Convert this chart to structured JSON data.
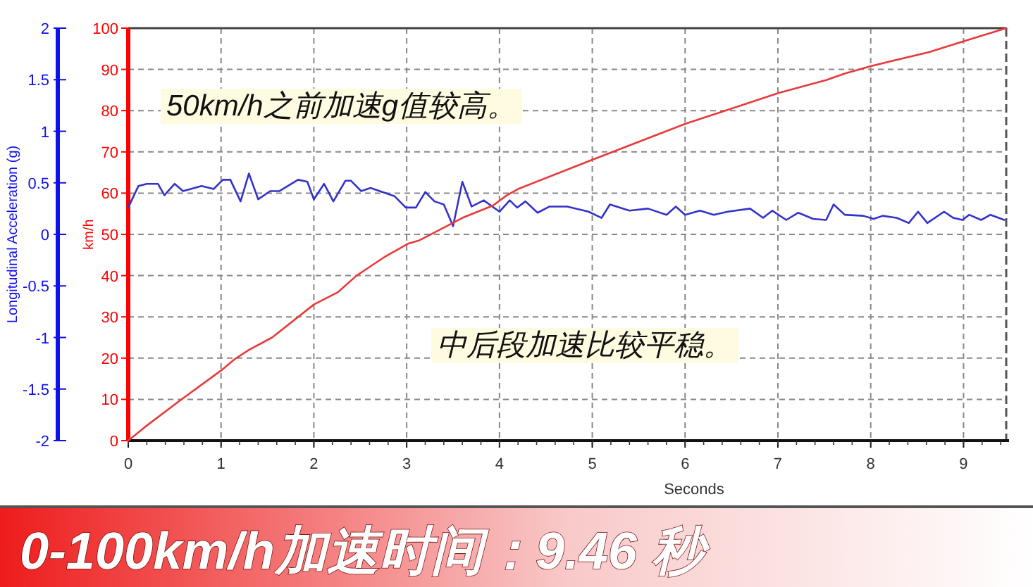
{
  "chart_data": {
    "type": "line",
    "title": "0-100km/h加速时间：9.46 秒",
    "xlabel": "Seconds",
    "ylabel": "Longitudinal Acceleration (g)",
    "y2label": "km/h",
    "xlim": [
      0,
      9.46
    ],
    "xticks": [
      0,
      1,
      2,
      3,
      4,
      5,
      6,
      7,
      8,
      9
    ],
    "ylim": [
      -2,
      2
    ],
    "yticks": [
      -2,
      -1.5,
      -1,
      {
        "value": -0.5,
        "label": "-0.5"
      },
      0,
      0.5,
      1,
      1.5,
      2
    ],
    "y2lim": [
      0,
      100
    ],
    "y2ticks": [
      0,
      10,
      20,
      30,
      40,
      50,
      60,
      70,
      80,
      90,
      100
    ],
    "grid": true,
    "marker": "none",
    "line_style": "solid",
    "annotations": [
      "50km/h之前加速g值较高。",
      "中后段加速比较平稳。"
    ],
    "series": [
      {
        "color": "#3333cc",
        "x": [
          0,
          0.11,
          0.2,
          0.32,
          0.39,
          0.5,
          0.59,
          0.79,
          0.92,
          1.02,
          1.1,
          1.21,
          1.3,
          1.4,
          1.53,
          1.63,
          1.83,
          1.93,
          2.0,
          2.11,
          2.21,
          2.34,
          2.4,
          2.51,
          2.61,
          2.87,
          2.99,
          3.1,
          3.2,
          3.3,
          3.4,
          3.5,
          3.6,
          3.7,
          3.83,
          4.0,
          4.11,
          4.19,
          4.28,
          4.41,
          4.54,
          4.73,
          4.96,
          5.1,
          5.19,
          5.4,
          5.6,
          5.8,
          5.9,
          6.0,
          6.16,
          6.31,
          6.46,
          6.7,
          6.84,
          6.94,
          7.09,
          7.22,
          7.38,
          7.52,
          7.6,
          7.72,
          7.92,
          8.03,
          8.13,
          8.28,
          8.41,
          8.51,
          8.61,
          8.79,
          8.89,
          8.99,
          9.06,
          9.19,
          9.29,
          9.44
        ],
        "values": [
          0.26,
          0.47,
          0.49,
          0.49,
          0.38,
          0.49,
          0.42,
          0.47,
          0.44,
          0.53,
          0.53,
          0.32,
          0.59,
          0.34,
          0.42,
          0.42,
          0.53,
          0.51,
          0.34,
          0.49,
          0.32,
          0.52,
          0.52,
          0.42,
          0.45,
          0.37,
          0.26,
          0.26,
          0.41,
          0.32,
          0.29,
          0.08,
          0.51,
          0.27,
          0.33,
          0.22,
          0.33,
          0.26,
          0.32,
          0.21,
          0.27,
          0.27,
          0.22,
          0.16,
          0.29,
          0.23,
          0.25,
          0.19,
          0.27,
          0.19,
          0.23,
          0.19,
          0.22,
          0.25,
          0.16,
          0.23,
          0.14,
          0.21,
          0.15,
          0.14,
          0.29,
          0.19,
          0.18,
          0.15,
          0.18,
          0.16,
          0.11,
          0.22,
          0.11,
          0.22,
          0.16,
          0.14,
          0.19,
          0.14,
          0.19,
          0.14
        ]
      },
      {
        "color": "#e83a3a",
        "axis": "y2",
        "x": [
          0,
          0.18,
          0.55,
          1.0,
          1.15,
          1.3,
          1.55,
          2.0,
          2.26,
          2.46,
          2.76,
          3.02,
          3.13,
          3.43,
          3.6,
          3.93,
          4.08,
          4.2,
          4.99,
          6.0,
          7.01,
          7.52,
          7.72,
          8.0,
          8.63,
          9.01,
          9.46
        ],
        "values": [
          0,
          3.3,
          9.6,
          17,
          19.8,
          22,
          25,
          33,
          36,
          40,
          44.5,
          47.8,
          48.5,
          52,
          54,
          57,
          59.5,
          61,
          68,
          76.8,
          84.3,
          87.4,
          89,
          90.8,
          94.2,
          96.9,
          100
        ]
      }
    ]
  }
}
